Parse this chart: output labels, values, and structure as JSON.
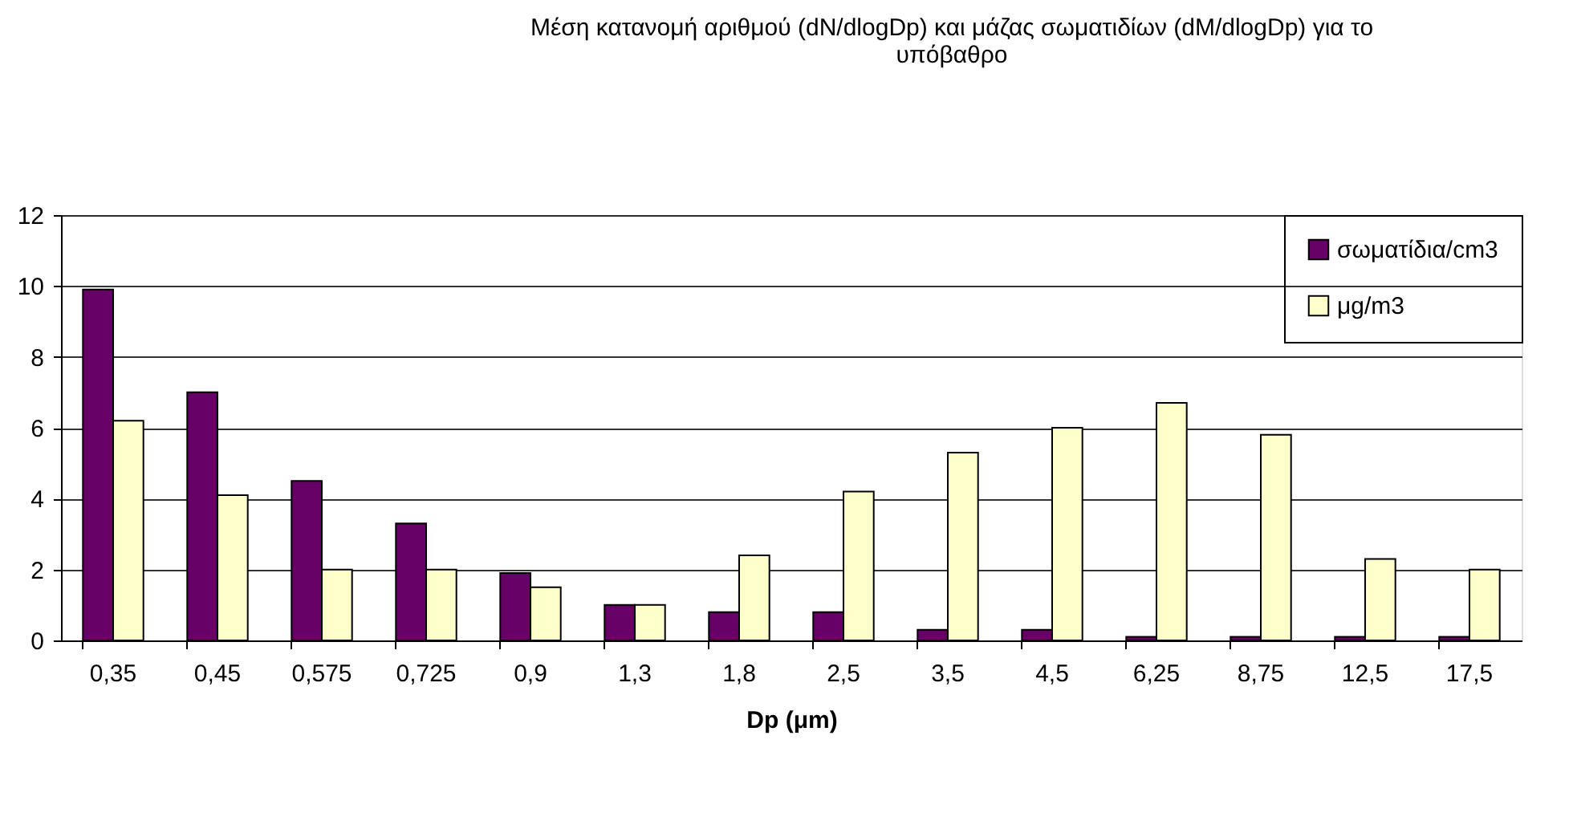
{
  "chart_data": {
    "type": "bar",
    "title": [
      "Μέση κατανομή αριθμού (dN/dlogDp) και μάζας σωματιδίων (dM/dlogDp) για το",
      "υπόβαθρο"
    ],
    "xlabel": "Dp (μm)",
    "categories": [
      "0,35",
      "0,45",
      "0,575",
      "0,725",
      "0,9",
      "1,3",
      "1,8",
      "2,5",
      "3,5",
      "4,5",
      "6,25",
      "8,75",
      "12,5",
      "17,5"
    ],
    "series": [
      {
        "name": "σωματίδια/cm3",
        "color": "#660066",
        "values": [
          9.9,
          7.0,
          4.5,
          3.3,
          1.9,
          1.0,
          0.8,
          0.8,
          0.3,
          0.3,
          0.1,
          0.1,
          0.1,
          0.1
        ]
      },
      {
        "name": "μg/m3",
        "color": "#ffffcc",
        "values": [
          6.2,
          4.1,
          2.0,
          2.0,
          1.5,
          1.0,
          2.4,
          4.2,
          5.3,
          6.0,
          6.7,
          5.8,
          2.3,
          2.0
        ]
      }
    ],
    "ylim": [
      0,
      12
    ],
    "yticks": [
      0,
      2,
      4,
      6,
      8,
      10,
      12
    ],
    "grid": "y",
    "legend": "top right"
  }
}
